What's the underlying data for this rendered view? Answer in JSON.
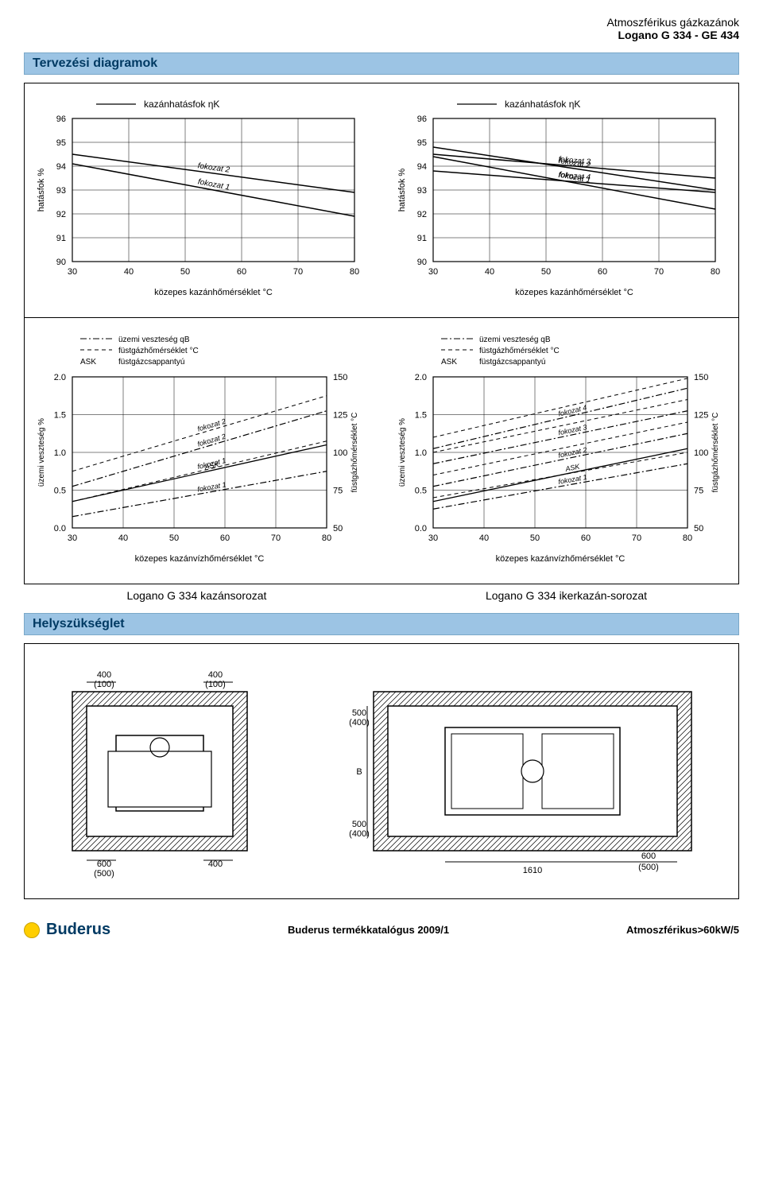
{
  "header": {
    "line1": "Atmoszférikus gázkazánok",
    "line2": "Logano G 334 - GE 434"
  },
  "sections": {
    "diagrams": "Tervezési diagramok",
    "space": "Helyszükséglet"
  },
  "captions": {
    "left": "Logano G 334 kazánsorozat",
    "right": "Logano G 334 ikerkazán-sorozat"
  },
  "eff_labels": {
    "legend": "kazánhatásfok ηK",
    "ylabel": "hatásfok %",
    "xlabel": "közepes kazánhőmérséklet °C",
    "xticks": [
      30,
      40,
      50,
      60,
      70,
      80
    ],
    "yticks": [
      90,
      91,
      92,
      93,
      94,
      95,
      96
    ]
  },
  "eff_left": {
    "lines": [
      {
        "label": "fokozat 1",
        "x": [
          30,
          80
        ],
        "y": [
          94.1,
          91.9
        ]
      },
      {
        "label": "fokozat 2",
        "x": [
          30,
          80
        ],
        "y": [
          94.5,
          92.9
        ]
      }
    ]
  },
  "eff_right": {
    "lines": [
      {
        "label": "fokozat 1",
        "x": [
          30,
          80
        ],
        "y": [
          94.4,
          92.2
        ]
      },
      {
        "label": "fokozat 2",
        "x": [
          30,
          80
        ],
        "y": [
          94.8,
          93.0
        ]
      },
      {
        "label": "fokozat 3",
        "x": [
          30,
          80
        ],
        "y": [
          94.5,
          93.5
        ]
      },
      {
        "label": "fokozat 4",
        "x": [
          30,
          80
        ],
        "y": [
          93.8,
          92.9
        ]
      }
    ]
  },
  "loss_labels": {
    "legend1": "üzemi veszteség qB",
    "legend2": "füstgázhőmérséklet °C",
    "legend3_pre": "ASK",
    "legend3": "füstgázcsappantyú",
    "ylabel_left": "üzemi veszteség %",
    "ylabel_right": "füstgázhőmérséklet °C",
    "xlabel": "közepes kazánvízhőmérséklet °C",
    "xticks": [
      30,
      40,
      50,
      60,
      70,
      80
    ],
    "yticks_left": [
      0.0,
      0.5,
      1.0,
      1.5,
      2.0
    ],
    "yticks_right": [
      50,
      75,
      100,
      125,
      150
    ]
  },
  "loss_left": {
    "dashdot": [
      {
        "label": "fokozat 1",
        "x": [
          30,
          80
        ],
        "y": [
          0.15,
          0.75
        ]
      },
      {
        "label": "fokozat 2",
        "x": [
          30,
          80
        ],
        "y": [
          0.55,
          1.55
        ]
      }
    ],
    "dashed": [
      {
        "label": "fokozat 1",
        "x": [
          30,
          80
        ],
        "y": [
          0.35,
          1.15
        ]
      },
      {
        "label": "fokozat 2",
        "x": [
          30,
          80
        ],
        "y": [
          0.75,
          1.75
        ]
      }
    ],
    "solid": [
      {
        "label": "ASK",
        "x": [
          30,
          80
        ],
        "y": [
          0.35,
          1.1
        ]
      }
    ]
  },
  "loss_right": {
    "dashdot": [
      {
        "label": "fokozat 1",
        "x": [
          30,
          80
        ],
        "y": [
          0.25,
          0.85
        ]
      },
      {
        "label": "fokozat 2",
        "x": [
          30,
          80
        ],
        "y": [
          0.55,
          1.25
        ]
      },
      {
        "label": "fokozat 3",
        "x": [
          30,
          80
        ],
        "y": [
          0.85,
          1.55
        ]
      },
      {
        "label": "fokozat 4",
        "x": [
          30,
          80
        ],
        "y": [
          1.05,
          1.85
        ]
      }
    ],
    "dashed": [
      {
        "x": [
          30,
          80
        ],
        "y": [
          0.4,
          1.0
        ]
      },
      {
        "x": [
          30,
          80
        ],
        "y": [
          0.7,
          1.4
        ]
      },
      {
        "x": [
          30,
          80
        ],
        "y": [
          1.0,
          1.7
        ]
      },
      {
        "x": [
          30,
          80
        ],
        "y": [
          1.2,
          1.98
        ]
      }
    ],
    "solid": [
      {
        "label": "ASK",
        "x": [
          30,
          80
        ],
        "y": [
          0.35,
          1.05
        ]
      }
    ]
  },
  "plan_left": {
    "dims": [
      "400",
      "(100)",
      "400",
      "(100)",
      "600",
      "(500)",
      "400"
    ]
  },
  "plan_right": {
    "dims": [
      "500",
      "(400)",
      "B",
      "500",
      "(400)",
      "1610",
      "600",
      "(500)"
    ]
  },
  "footer": {
    "brand": "Buderus",
    "center": "Buderus termékkatalógus 2009/1",
    "right": "Atmoszférikus>60kW/5"
  },
  "style": {
    "axis_color": "#000000",
    "grid_color": "#000000",
    "line_color": "#000000",
    "bar_color": "#9cc4e4",
    "font": "Arial"
  }
}
